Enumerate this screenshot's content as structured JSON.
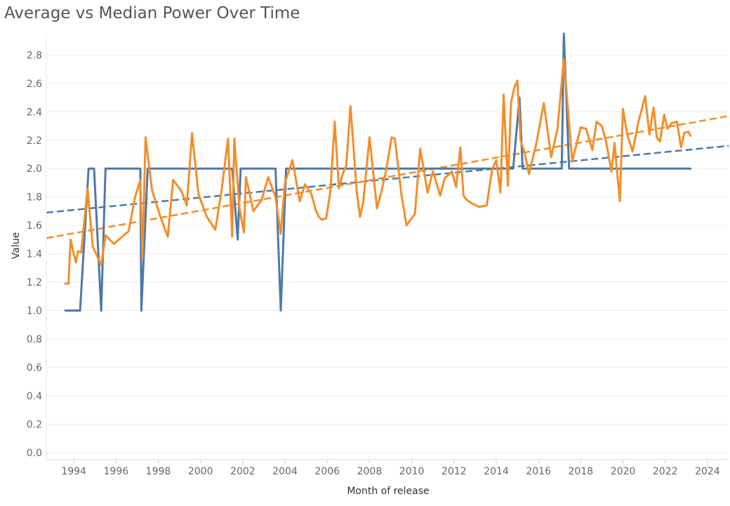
{
  "title": "Average vs Median Power Over Time",
  "chart_data": {
    "type": "line",
    "title": "Average vs Median Power Over Time",
    "xlabel": "Month of release",
    "ylabel": "Value",
    "xlim": [
      1992.7,
      2025.0
    ],
    "ylim": [
      -0.05,
      2.95
    ],
    "x_ticks": [
      "1994",
      "1996",
      "1998",
      "2000",
      "2002",
      "2004",
      "2006",
      "2008",
      "2010",
      "2012",
      "2014",
      "2016",
      "2018",
      "2020",
      "2022",
      "2024"
    ],
    "y_ticks": [
      "0.0",
      "0.2",
      "0.4",
      "0.6",
      "0.8",
      "1.0",
      "1.2",
      "1.4",
      "1.6",
      "1.8",
      "2.0",
      "2.2",
      "2.4",
      "2.6",
      "2.8"
    ],
    "grid": true,
    "colors": {
      "blue": "#4e79a7",
      "orange": "#f28e2b"
    },
    "series": [
      {
        "color": "#4e79a7",
        "x": [
          1993.6,
          1994.3,
          1994.7,
          1994.96,
          1995.3,
          1995.5,
          1997.15,
          1997.2,
          1997.5,
          2001.5,
          2001.76,
          2001.9,
          2002.05,
          2003.55,
          2003.8,
          2004.05,
          2004.15,
          2014.8,
          2015.1,
          2015.25,
          2017.1,
          2017.2,
          2017.45,
          2023.2
        ],
        "y": [
          1.0,
          1.0,
          2.0,
          2.0,
          1.0,
          2.0,
          2.0,
          1.0,
          2.0,
          2.0,
          1.5,
          2.0,
          2.0,
          2.0,
          1.0,
          2.0,
          2.0,
          2.0,
          2.5,
          2.0,
          2.0,
          2.95,
          2.0,
          2.0
        ]
      },
      {
        "color": "#f28e2b",
        "x": [
          1993.6,
          1993.75,
          1993.85,
          1994.0,
          1994.1,
          1994.2,
          1994.35,
          1994.65,
          1994.9,
          1995.3,
          1995.5,
          1995.9,
          1996.6,
          1996.9,
          1997.15,
          1997.25,
          1997.4,
          1997.7,
          1998.1,
          1998.45,
          1998.7,
          1999.1,
          1999.35,
          1999.6,
          1999.9,
          2000.3,
          2000.7,
          2001.0,
          2001.3,
          2001.5,
          2001.6,
          2001.85,
          2002.05,
          2002.15,
          2002.3,
          2002.5,
          2002.9,
          2003.2,
          2003.55,
          2003.8,
          2004.0,
          2004.35,
          2004.7,
          2004.95,
          2005.25,
          2005.45,
          2005.6,
          2005.75,
          2005.95,
          2006.15,
          2006.35,
          2006.55,
          2006.75,
          2006.9,
          2007.1,
          2007.4,
          2007.55,
          2007.7,
          2008.0,
          2008.35,
          2008.55,
          2008.75,
          2009.05,
          2009.2,
          2009.5,
          2009.75,
          2010.15,
          2010.4,
          2010.75,
          2011.0,
          2011.35,
          2011.55,
          2011.9,
          2012.1,
          2012.3,
          2012.45,
          2012.6,
          2012.9,
          2013.2,
          2013.55,
          2013.8,
          2014.0,
          2014.2,
          2014.35,
          2014.55,
          2014.7,
          2014.85,
          2015.0,
          2015.15,
          2015.35,
          2015.55,
          2015.9,
          2016.25,
          2016.6,
          2016.9,
          2017.2,
          2017.6,
          2018.0,
          2018.25,
          2018.55,
          2018.75,
          2019.0,
          2019.2,
          2019.45,
          2019.6,
          2019.85,
          2020.0,
          2020.2,
          2020.45,
          2020.75,
          2021.05,
          2021.25,
          2021.45,
          2021.6,
          2021.75,
          2021.95,
          2022.1,
          2022.3,
          2022.55,
          2022.75,
          2022.9,
          2023.1,
          2023.2
        ],
        "y": [
          1.19,
          1.19,
          1.5,
          1.4,
          1.34,
          1.42,
          1.41,
          1.86,
          1.45,
          1.32,
          1.53,
          1.47,
          1.56,
          1.8,
          1.92,
          1.37,
          2.22,
          1.85,
          1.66,
          1.52,
          1.92,
          1.84,
          1.74,
          2.25,
          1.82,
          1.66,
          1.57,
          1.85,
          2.21,
          1.52,
          2.21,
          1.72,
          1.55,
          1.94,
          1.84,
          1.7,
          1.78,
          1.94,
          1.8,
          1.54,
          1.9,
          2.06,
          1.77,
          1.89,
          1.82,
          1.71,
          1.66,
          1.64,
          1.65,
          1.84,
          2.33,
          1.86,
          1.97,
          2.02,
          2.44,
          1.83,
          1.66,
          1.76,
          2.22,
          1.72,
          1.83,
          1.96,
          2.22,
          2.21,
          1.83,
          1.6,
          1.68,
          2.14,
          1.83,
          1.98,
          1.81,
          1.93,
          1.98,
          1.87,
          2.15,
          1.81,
          1.78,
          1.75,
          1.73,
          1.74,
          1.99,
          2.06,
          1.83,
          2.52,
          1.88,
          2.46,
          2.57,
          2.62,
          2.2,
          2.11,
          1.96,
          2.18,
          2.46,
          2.08,
          2.28,
          2.77,
          2.05,
          2.29,
          2.28,
          2.13,
          2.33,
          2.3,
          2.19,
          1.98,
          2.18,
          1.77,
          2.42,
          2.24,
          2.12,
          2.34,
          2.51,
          2.24,
          2.43,
          2.22,
          2.19,
          2.38,
          2.28,
          2.32,
          2.33,
          2.15,
          2.25,
          2.26,
          2.23
        ]
      }
    ],
    "trend_lines": [
      {
        "color": "#4e79a7",
        "style": "dashed",
        "x": [
          1992.7,
          2025.0
        ],
        "y": [
          1.69,
          2.16
        ]
      },
      {
        "color": "#f28e2b",
        "style": "dashed",
        "x": [
          1992.7,
          2025.0
        ],
        "y": [
          1.51,
          2.37
        ]
      }
    ]
  }
}
